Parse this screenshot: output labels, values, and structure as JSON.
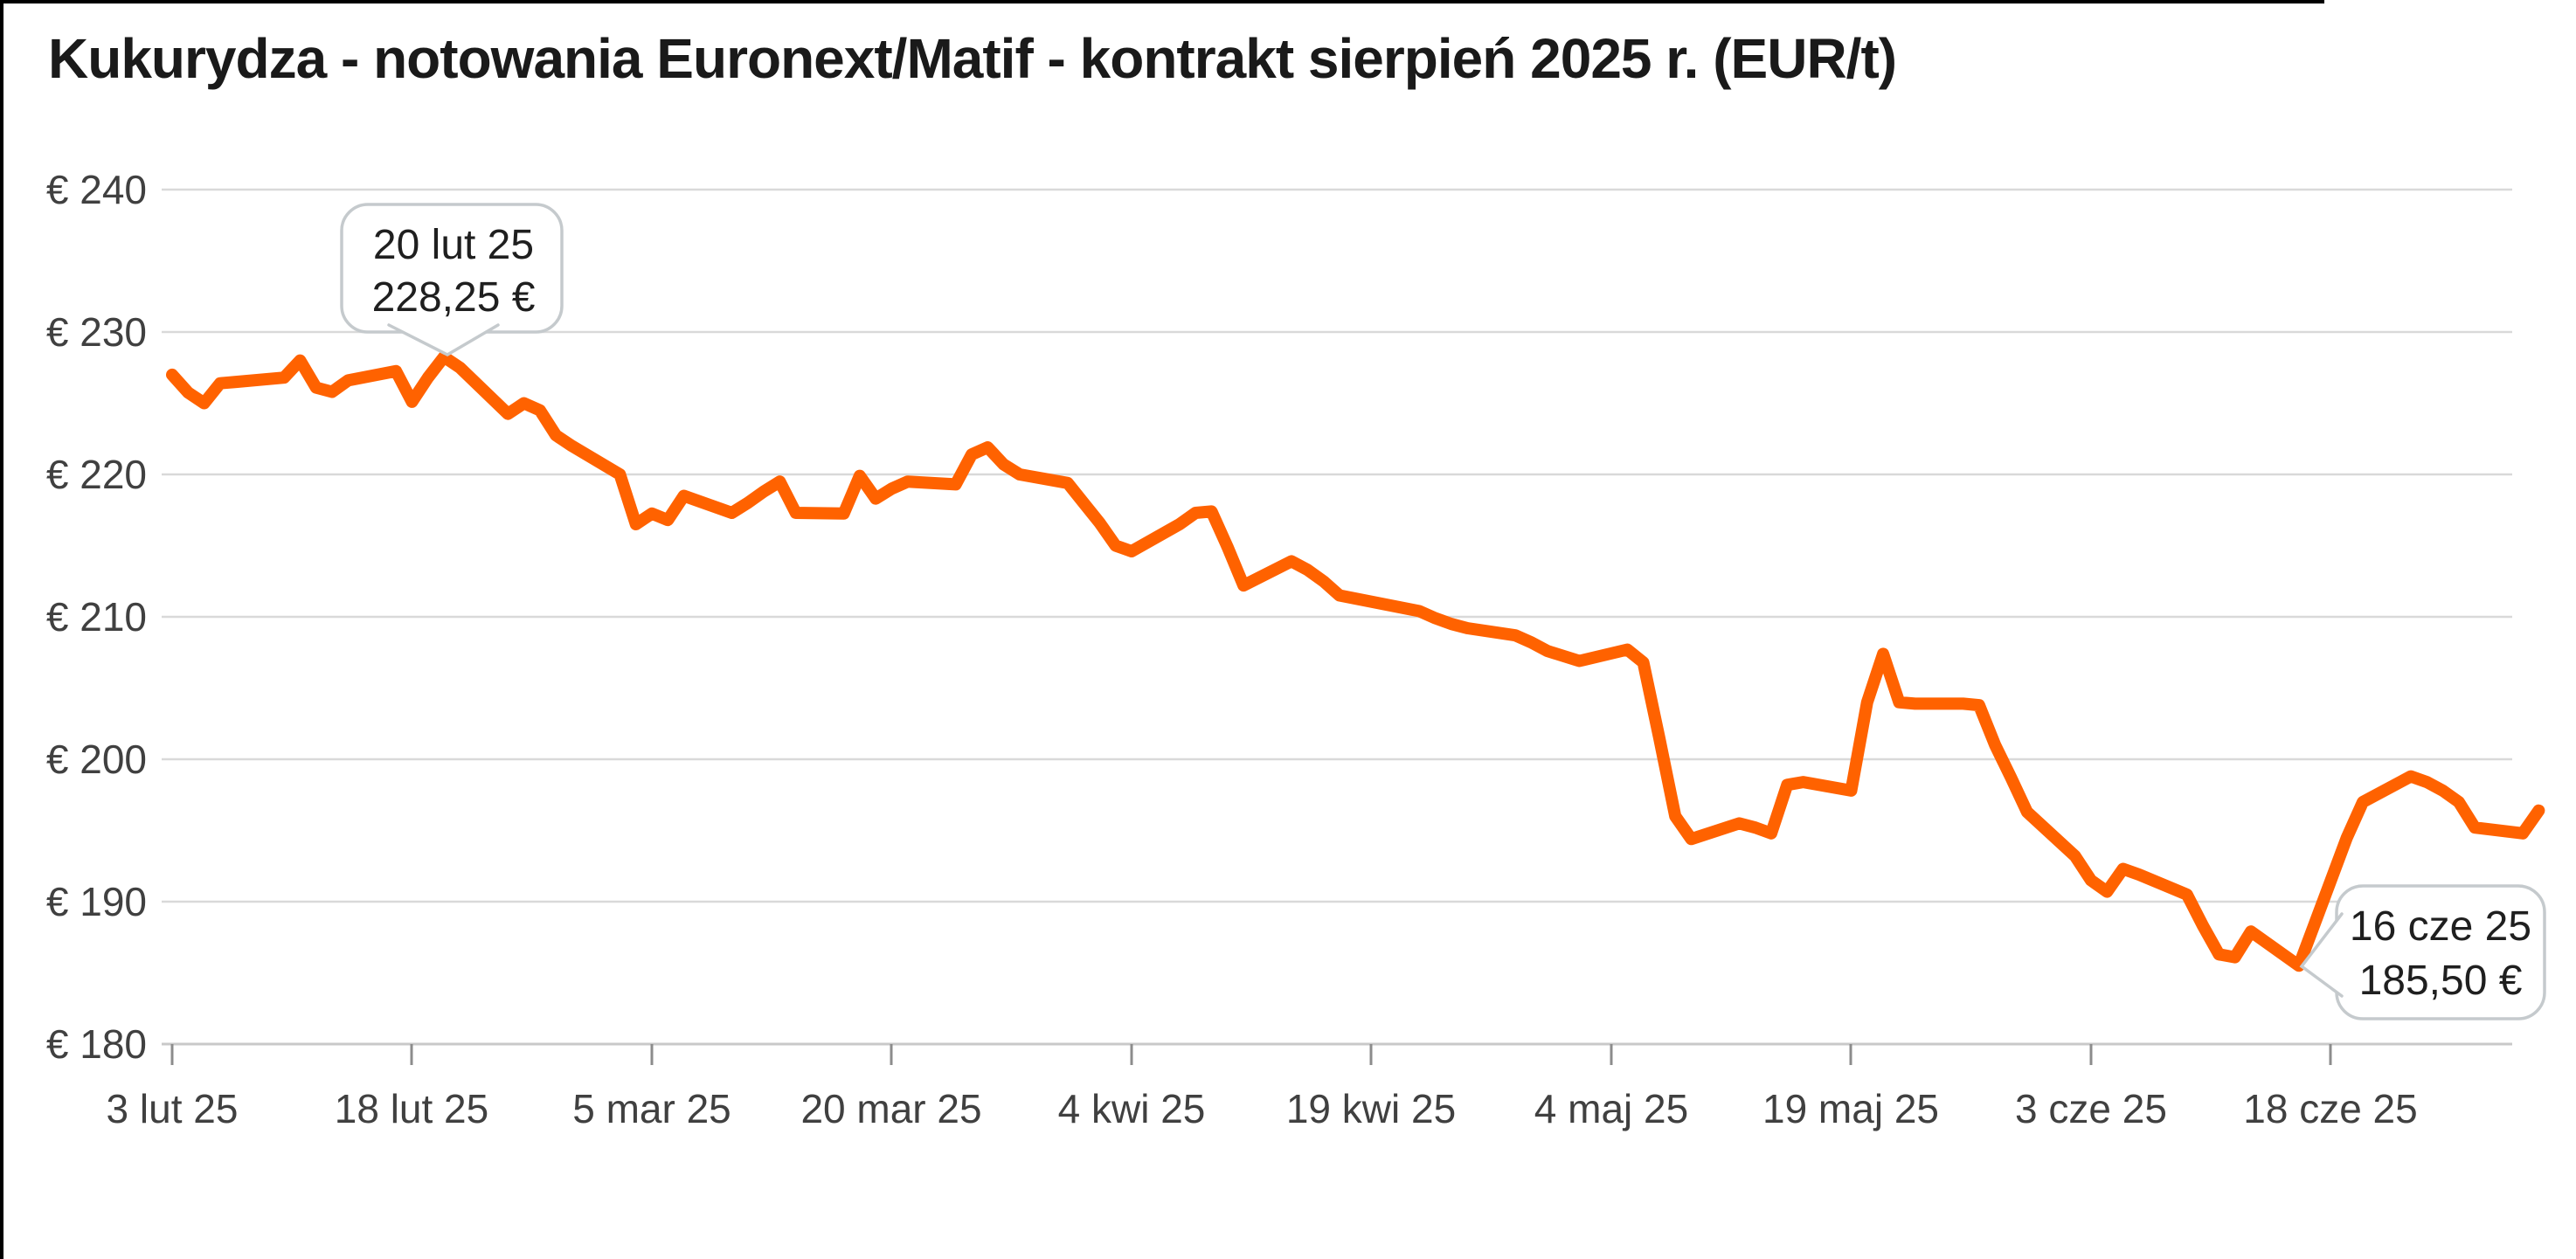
{
  "chart_data": {
    "type": "line",
    "title": "Kukurydza - notowania Euronext/Matif - kontrakt sierpień 2025 r. (EUR/t)",
    "unit": "EUR/t",
    "line_color": "#FF6200",
    "grid_color": "#d9d9d9",
    "background_color": "#ffffff",
    "grid": "horizontal-only",
    "legend_position": "none",
    "ylim": [
      180,
      240
    ],
    "y_ticks": [
      240,
      230,
      220,
      210,
      200,
      190,
      180
    ],
    "y_tick_labels": [
      "€ 240",
      "€ 230",
      "€ 220",
      "€ 210",
      "€ 200",
      "€ 190",
      "€ 180"
    ],
    "x_tick_labels": [
      "3 lut 25",
      "18 lut 25",
      "5 mar 25",
      "20 mar 25",
      "4 kwi 25",
      "19 kwi 25",
      "4 maj 25",
      "19 maj 25",
      "3 cze 25",
      "18 cze 25"
    ],
    "x_tick_dates": [
      "2025-02-03",
      "2025-02-18",
      "2025-03-05",
      "2025-03-20",
      "2025-04-04",
      "2025-04-19",
      "2025-05-04",
      "2025-05-19",
      "2025-06-03",
      "2025-06-18"
    ],
    "annotations": [
      {
        "label": "20 lut 25",
        "value": "228,25 €",
        "date": "2025-02-20",
        "point_value": 228.25
      },
      {
        "label": "16 cze 25",
        "value": "185,50 €",
        "date": "2025-06-16",
        "point_value": 185.5
      }
    ],
    "series": [
      {
        "name": "Kukurydza Euronext/Matif kontrakt sierpień 2025",
        "points": [
          [
            "2025-02-03",
            227.0
          ],
          [
            "2025-02-04",
            225.75
          ],
          [
            "2025-02-05",
            225.0
          ],
          [
            "2025-02-06",
            226.4
          ],
          [
            "2025-02-07",
            226.5
          ],
          [
            "2025-02-10",
            226.8
          ],
          [
            "2025-02-11",
            228.0
          ],
          [
            "2025-02-12",
            226.1
          ],
          [
            "2025-02-13",
            225.8
          ],
          [
            "2025-02-14",
            226.6
          ],
          [
            "2025-02-17",
            227.25
          ],
          [
            "2025-02-18",
            225.1
          ],
          [
            "2025-02-19",
            226.8
          ],
          [
            "2025-02-20",
            228.25
          ],
          [
            "2025-02-21",
            227.5
          ],
          [
            "2025-02-24",
            224.25
          ],
          [
            "2025-02-25",
            225.0
          ],
          [
            "2025-02-26",
            224.5
          ],
          [
            "2025-02-27",
            222.75
          ],
          [
            "2025-02-28",
            222.0
          ],
          [
            "2025-03-03",
            220.0
          ],
          [
            "2025-03-04",
            216.5
          ],
          [
            "2025-03-05",
            217.25
          ],
          [
            "2025-03-06",
            216.8
          ],
          [
            "2025-03-07",
            218.5
          ],
          [
            "2025-03-10",
            217.3
          ],
          [
            "2025-03-11",
            218.0
          ],
          [
            "2025-03-12",
            218.8
          ],
          [
            "2025-03-13",
            219.5
          ],
          [
            "2025-03-14",
            217.3
          ],
          [
            "2025-03-17",
            217.25
          ],
          [
            "2025-03-18",
            219.9
          ],
          [
            "2025-03-19",
            218.3
          ],
          [
            "2025-03-20",
            219.0
          ],
          [
            "2025-03-21",
            219.5
          ],
          [
            "2025-03-24",
            219.3
          ],
          [
            "2025-03-25",
            221.4
          ],
          [
            "2025-03-26",
            221.9
          ],
          [
            "2025-03-27",
            220.7
          ],
          [
            "2025-03-28",
            220.0
          ],
          [
            "2025-03-31",
            219.4
          ],
          [
            "2025-04-01",
            218.0
          ],
          [
            "2025-04-02",
            216.6
          ],
          [
            "2025-04-03",
            215.0
          ],
          [
            "2025-04-04",
            214.6
          ],
          [
            "2025-04-07",
            216.5
          ],
          [
            "2025-04-08",
            217.3
          ],
          [
            "2025-04-09",
            217.4
          ],
          [
            "2025-04-10",
            214.9
          ],
          [
            "2025-04-11",
            212.2
          ],
          [
            "2025-04-14",
            213.9
          ],
          [
            "2025-04-15",
            213.3
          ],
          [
            "2025-04-16",
            212.5
          ],
          [
            "2025-04-17",
            211.5
          ],
          [
            "2025-04-22",
            210.4
          ],
          [
            "2025-04-23",
            209.9
          ],
          [
            "2025-04-24",
            209.5
          ],
          [
            "2025-04-25",
            209.2
          ],
          [
            "2025-04-28",
            208.7
          ],
          [
            "2025-04-29",
            208.2
          ],
          [
            "2025-04-30",
            207.6
          ],
          [
            "2025-05-02",
            206.9
          ],
          [
            "2025-05-05",
            207.7
          ],
          [
            "2025-05-06",
            206.8
          ],
          [
            "2025-05-07",
            201.5
          ],
          [
            "2025-05-08",
            196.0
          ],
          [
            "2025-05-09",
            194.4
          ],
          [
            "2025-05-12",
            195.5
          ],
          [
            "2025-05-13",
            195.2
          ],
          [
            "2025-05-14",
            194.8
          ],
          [
            "2025-05-15",
            198.2
          ],
          [
            "2025-05-16",
            198.4
          ],
          [
            "2025-05-19",
            197.8
          ],
          [
            "2025-05-20",
            204.0
          ],
          [
            "2025-05-21",
            207.4
          ],
          [
            "2025-05-22",
            204.0
          ],
          [
            "2025-05-23",
            203.9
          ],
          [
            "2025-05-26",
            203.9
          ],
          [
            "2025-05-27",
            203.8
          ],
          [
            "2025-05-28",
            201.0
          ],
          [
            "2025-05-29",
            198.7
          ],
          [
            "2025-05-30",
            196.3
          ],
          [
            "2025-06-02",
            193.2
          ],
          [
            "2025-06-03",
            191.5
          ],
          [
            "2025-06-04",
            190.7
          ],
          [
            "2025-06-05",
            192.3
          ],
          [
            "2025-06-06",
            191.9
          ],
          [
            "2025-06-09",
            190.5
          ],
          [
            "2025-06-10",
            188.3
          ],
          [
            "2025-06-11",
            186.3
          ],
          [
            "2025-06-12",
            186.1
          ],
          [
            "2025-06-13",
            187.9
          ],
          [
            "2025-06-16",
            185.5
          ],
          [
            "2025-06-17",
            188.5
          ],
          [
            "2025-06-18",
            191.5
          ],
          [
            "2025-06-19",
            194.5
          ],
          [
            "2025-06-20",
            197.0
          ],
          [
            "2025-06-23",
            198.8
          ],
          [
            "2025-06-24",
            198.4
          ],
          [
            "2025-06-25",
            197.8
          ],
          [
            "2025-06-26",
            197.0
          ],
          [
            "2025-06-27",
            195.2
          ],
          [
            "2025-06-30",
            194.8
          ],
          [
            "2025-07-01",
            196.4
          ]
        ]
      }
    ]
  }
}
